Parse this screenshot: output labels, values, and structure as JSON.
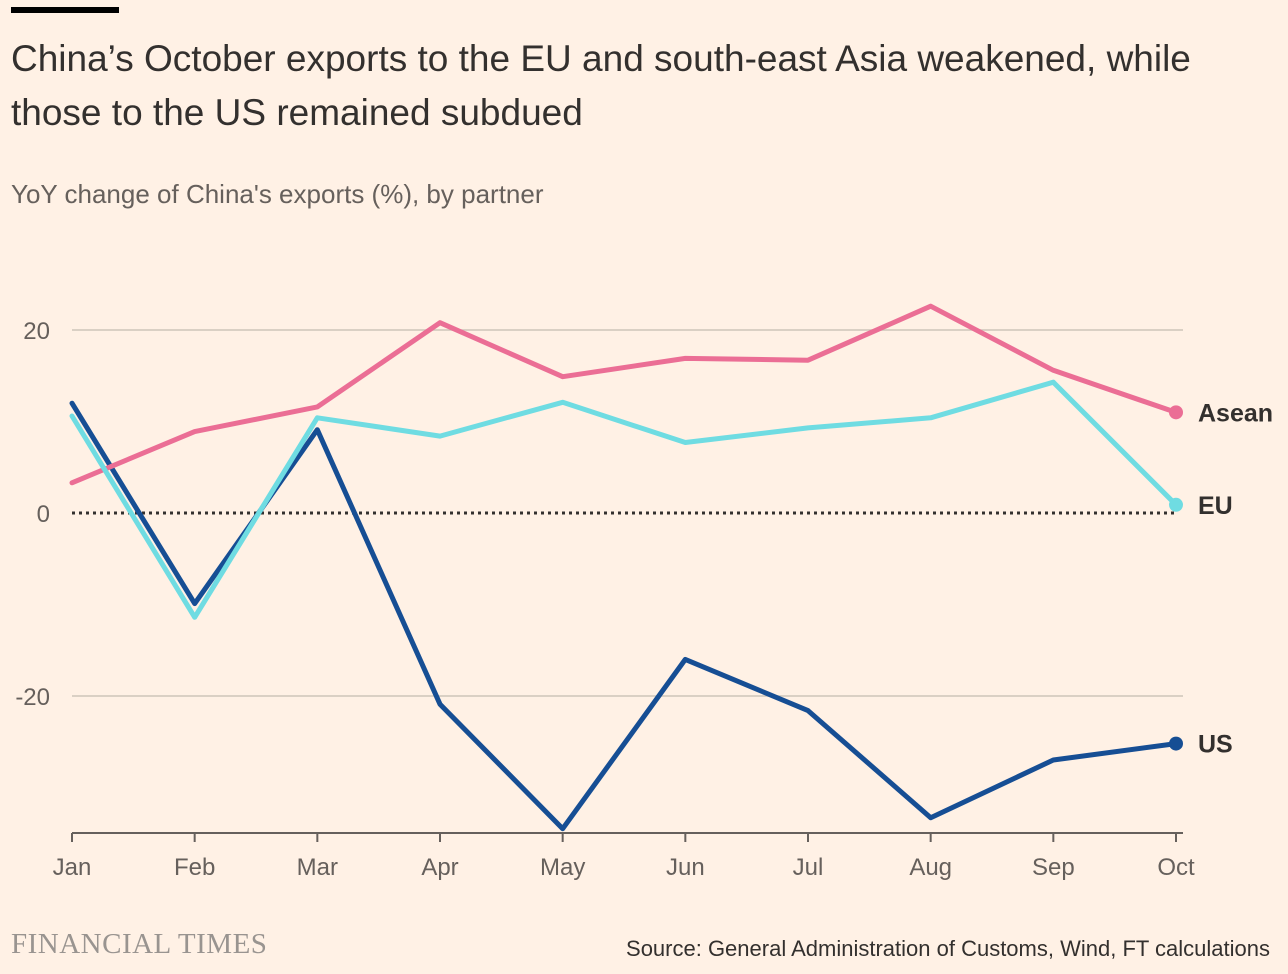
{
  "header": {
    "title": "China’s October exports to the EU and south-east Asia weakened, while those to the US remained subdued",
    "subtitle": "YoY change of China's exports (%), by partner"
  },
  "footer": {
    "brand": "FINANCIAL TIMES",
    "source": "Source: General Administration of Customs, Wind, FT calculations"
  },
  "colors": {
    "background": "#FFF1E5",
    "asean": "#EB6E95",
    "eu": "#6FDCE2",
    "us": "#164E94",
    "gridline": "#CEC6B9",
    "zero_line": "#33302E"
  },
  "chart_data": {
    "type": "line",
    "title": "China’s October exports to the EU and south-east Asia weakened, while those to the US remained subdued",
    "subtitle": "YoY change of China's exports (%), by partner",
    "xlabel": "",
    "ylabel": "",
    "categories": [
      "Jan",
      "Feb",
      "Mar",
      "Apr",
      "May",
      "Jun",
      "Jul",
      "Aug",
      "Sep",
      "Oct"
    ],
    "y_ticks": [
      20,
      0,
      -20
    ],
    "y_tick_labels": [
      "20",
      "0",
      "-20"
    ],
    "ylim": [
      -34.5,
      20
    ],
    "grid": true,
    "series": [
      {
        "name": "Asean",
        "color": "#EB6E95",
        "values": [
          3.3,
          8.9,
          11.6,
          20.8,
          14.9,
          16.9,
          16.7,
          22.6,
          15.6,
          11.0
        ]
      },
      {
        "name": "EU",
        "color": "#6FDCE2",
        "values": [
          10.6,
          -11.4,
          10.4,
          8.4,
          12.1,
          7.7,
          9.3,
          10.4,
          14.3,
          0.9
        ]
      },
      {
        "name": "US",
        "color": "#164E94",
        "values": [
          12.0,
          -9.9,
          9.1,
          -20.9,
          -34.5,
          -16.0,
          -21.6,
          -33.3,
          -27.0,
          -25.2
        ]
      }
    ]
  }
}
